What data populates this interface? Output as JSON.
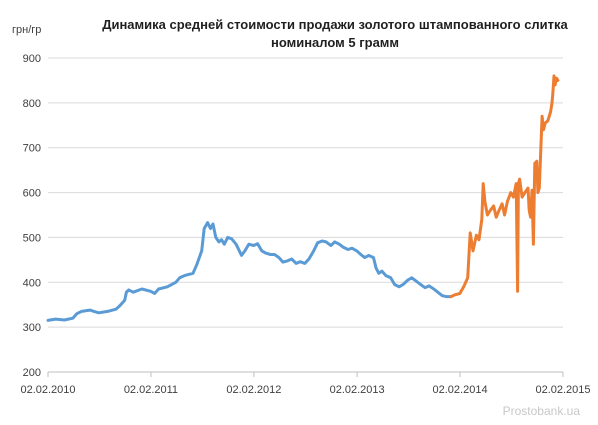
{
  "chart_data": {
    "type": "line",
    "title_lines": [
      "Динамика средней стоимости продажи золотого штампованного слитка",
      "номиналом 5 грамм"
    ],
    "ylabel": "грн/гр",
    "xlabel": "",
    "ylim": [
      200,
      900
    ],
    "yticks": [
      200,
      300,
      400,
      500,
      600,
      700,
      800,
      900
    ],
    "xticks": [
      "02.02.2010",
      "02.02.2011",
      "02.02.2012",
      "02.02.2013",
      "02.02.2014",
      "02.02.2015"
    ],
    "grid": "horizontal",
    "legend": "none",
    "series": [
      {
        "color": "#5B9BD5",
        "points": [
          [
            "02.02.2010",
            315
          ],
          [
            "01.03.2010",
            318
          ],
          [
            "01.04.2010",
            316
          ],
          [
            "01.05.2010",
            320
          ],
          [
            "15.05.2010",
            330
          ],
          [
            "01.06.2010",
            335
          ],
          [
            "01.07.2010",
            338
          ],
          [
            "15.07.2010",
            335
          ],
          [
            "01.08.2010",
            332
          ],
          [
            "01.09.2010",
            335
          ],
          [
            "01.10.2010",
            340
          ],
          [
            "15.10.2010",
            348
          ],
          [
            "01.11.2010",
            360
          ],
          [
            "07.11.2010",
            378
          ],
          [
            "15.11.2010",
            383
          ],
          [
            "01.12.2010",
            378
          ],
          [
            "01.01.2011",
            385
          ],
          [
            "01.02.2011",
            380
          ],
          [
            "15.02.2011",
            375
          ],
          [
            "01.03.2011",
            385
          ],
          [
            "01.04.2011",
            390
          ],
          [
            "01.05.2011",
            400
          ],
          [
            "15.05.2011",
            410
          ],
          [
            "01.06.2011",
            415
          ],
          [
            "01.07.2011",
            420
          ],
          [
            "15.07.2011",
            440
          ],
          [
            "01.08.2011",
            470
          ],
          [
            "10.08.2011",
            520
          ],
          [
            "22.08.2011",
            533
          ],
          [
            "01.09.2011",
            520
          ],
          [
            "10.09.2011",
            530
          ],
          [
            "20.09.2011",
            500
          ],
          [
            "01.10.2011",
            490
          ],
          [
            "10.10.2011",
            495
          ],
          [
            "20.10.2011",
            485
          ],
          [
            "01.11.2011",
            500
          ],
          [
            "15.11.2011",
            497
          ],
          [
            "01.12.2011",
            485
          ],
          [
            "20.12.2011",
            460
          ],
          [
            "01.01.2012",
            470
          ],
          [
            "15.01.2012",
            485
          ],
          [
            "01.02.2012",
            482
          ],
          [
            "15.02.2012",
            486
          ],
          [
            "01.03.2012",
            470
          ],
          [
            "15.03.2012",
            465
          ],
          [
            "01.04.2012",
            462
          ],
          [
            "15.04.2012",
            462
          ],
          [
            "01.05.2012",
            455
          ],
          [
            "15.05.2012",
            445
          ],
          [
            "01.06.2012",
            448
          ],
          [
            "15.06.2012",
            452
          ],
          [
            "01.07.2012",
            442
          ],
          [
            "15.07.2012",
            446
          ],
          [
            "01.08.2012",
            442
          ],
          [
            "15.08.2012",
            452
          ],
          [
            "01.09.2012",
            470
          ],
          [
            "15.09.2012",
            488
          ],
          [
            "01.10.2012",
            492
          ],
          [
            "15.10.2012",
            490
          ],
          [
            "01.11.2012",
            482
          ],
          [
            "15.11.2012",
            490
          ],
          [
            "01.12.2012",
            485
          ],
          [
            "15.12.2012",
            478
          ],
          [
            "01.01.2013",
            473
          ],
          [
            "15.01.2013",
            476
          ],
          [
            "01.02.2013",
            470
          ],
          [
            "15.02.2013",
            462
          ],
          [
            "01.03.2013",
            455
          ],
          [
            "15.03.2013",
            460
          ],
          [
            "01.04.2013",
            455
          ],
          [
            "10.04.2013",
            432
          ],
          [
            "20.04.2013",
            420
          ],
          [
            "01.05.2013",
            425
          ],
          [
            "15.05.2013",
            415
          ],
          [
            "01.06.2013",
            410
          ],
          [
            "15.06.2013",
            395
          ],
          [
            "01.07.2013",
            390
          ],
          [
            "15.07.2013",
            395
          ],
          [
            "01.08.2013",
            405
          ],
          [
            "15.08.2013",
            410
          ],
          [
            "01.09.2013",
            402
          ],
          [
            "15.09.2013",
            395
          ],
          [
            "01.10.2013",
            388
          ],
          [
            "15.10.2013",
            392
          ],
          [
            "01.11.2013",
            385
          ],
          [
            "15.11.2013",
            378
          ],
          [
            "01.12.2013",
            370
          ],
          [
            "15.12.2013",
            368
          ],
          [
            "01.01.2014",
            368
          ]
        ]
      },
      {
        "color": "#ED7D31",
        "points": [
          [
            "01.01.2014",
            368
          ],
          [
            "15.01.2014",
            372
          ],
          [
            "01.02.2014",
            375
          ],
          [
            "15.02.2014",
            390
          ],
          [
            "01.03.2014",
            410
          ],
          [
            "10.03.2014",
            510
          ],
          [
            "20.03.2014",
            470
          ],
          [
            "01.04.2014",
            505
          ],
          [
            "10.04.2014",
            495
          ],
          [
            "20.04.2014",
            540
          ],
          [
            "25.04.2014",
            620
          ],
          [
            "01.05.2014",
            580
          ],
          [
            "10.05.2014",
            550
          ],
          [
            "20.05.2014",
            560
          ],
          [
            "01.06.2014",
            570
          ],
          [
            "10.06.2014",
            545
          ],
          [
            "20.06.2014",
            560
          ],
          [
            "01.07.2014",
            575
          ],
          [
            "10.07.2014",
            550
          ],
          [
            "20.07.2014",
            580
          ],
          [
            "01.08.2014",
            600
          ],
          [
            "10.08.2014",
            590
          ],
          [
            "20.08.2014",
            620
          ],
          [
            "25.08.2014",
            380
          ],
          [
            "28.08.2014",
            620
          ],
          [
            "01.09.2014",
            630
          ],
          [
            "10.09.2014",
            590
          ],
          [
            "20.09.2014",
            600
          ],
          [
            "01.10.2014",
            610
          ],
          [
            "05.10.2014",
            560
          ],
          [
            "10.10.2014",
            545
          ],
          [
            "15.10.2014",
            605
          ],
          [
            "20.10.2014",
            485
          ],
          [
            "25.10.2014",
            665
          ],
          [
            "01.11.2014",
            670
          ],
          [
            "05.11.2014",
            600
          ],
          [
            "10.11.2014",
            610
          ],
          [
            "15.11.2014",
            690
          ],
          [
            "20.11.2014",
            770
          ],
          [
            "25.11.2014",
            740
          ],
          [
            "01.12.2014",
            755
          ],
          [
            "10.12.2014",
            760
          ],
          [
            "15.12.2014",
            770
          ],
          [
            "20.12.2014",
            780
          ],
          [
            "25.12.2014",
            800
          ],
          [
            "28.12.2014",
            820
          ],
          [
            "01.01.2015",
            860
          ],
          [
            "05.01.2015",
            840
          ],
          [
            "10.01.2015",
            855
          ],
          [
            "15.01.2015",
            850
          ]
        ]
      }
    ]
  },
  "watermark": "Prostobank.ua"
}
